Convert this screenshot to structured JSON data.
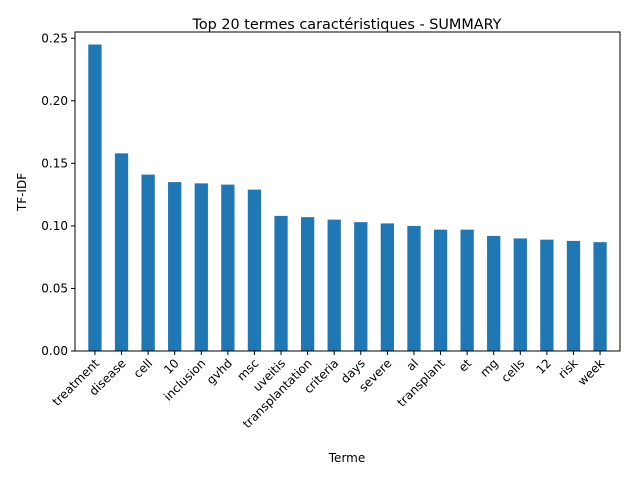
{
  "chart_data": {
    "type": "bar",
    "title": "Top 20 termes caractéristiques - SUMMARY",
    "xlabel": "Terme",
    "ylabel": "TF-IDF",
    "ylim": [
      0,
      0.255
    ],
    "yticks": [
      0.0,
      0.05,
      0.1,
      0.15,
      0.2,
      0.25
    ],
    "ytick_labels": [
      "0.00",
      "0.05",
      "0.10",
      "0.15",
      "0.20",
      "0.25"
    ],
    "grid": false,
    "legend": "none",
    "categories": [
      "treatment",
      "disease",
      "cell",
      "10",
      "inclusion",
      "gvhd",
      "msc",
      "uveitis",
      "transplantation",
      "criteria",
      "days",
      "severe",
      "al",
      "transplant",
      "et",
      "mg",
      "cells",
      "12",
      "risk",
      "week"
    ],
    "values": [
      0.245,
      0.158,
      0.141,
      0.135,
      0.134,
      0.133,
      0.129,
      0.108,
      0.107,
      0.105,
      0.103,
      0.102,
      0.1,
      0.097,
      0.097,
      0.092,
      0.09,
      0.089,
      0.088,
      0.087
    ],
    "bar_color": "#1f77b4"
  }
}
